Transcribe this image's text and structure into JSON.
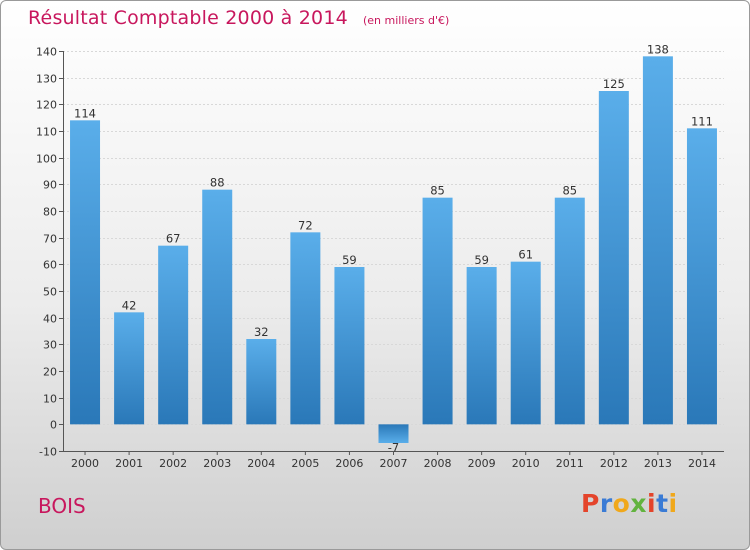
{
  "header": {
    "title": "Résultat Comptable 2000 à 2014",
    "subtitle": "(en milliers d'€)"
  },
  "footer": {
    "place": "BOIS",
    "logo_text": "Proxiti",
    "logo_colors": [
      "#e4442b",
      "#3a7bd5",
      "#f0a81b",
      "#62b33f",
      "#e4442b",
      "#3a7bd5",
      "#f0a81b"
    ]
  },
  "chart_data": {
    "type": "bar",
    "title": "Résultat Comptable 2000 à 2014",
    "subtitle": "(en milliers d'€)",
    "categories": [
      "2000",
      "2001",
      "2002",
      "2003",
      "2004",
      "2005",
      "2006",
      "2007",
      "2008",
      "2009",
      "2010",
      "2011",
      "2012",
      "2013",
      "2014"
    ],
    "values": [
      114,
      42,
      67,
      88,
      32,
      72,
      59,
      -7,
      85,
      59,
      61,
      85,
      125,
      138,
      111
    ],
    "ylim": [
      -10,
      140
    ],
    "yticks": [
      -10,
      0,
      10,
      20,
      30,
      40,
      50,
      60,
      70,
      80,
      90,
      100,
      110,
      120,
      130,
      140
    ],
    "grid": true,
    "bar_color": "#3f95d8"
  }
}
